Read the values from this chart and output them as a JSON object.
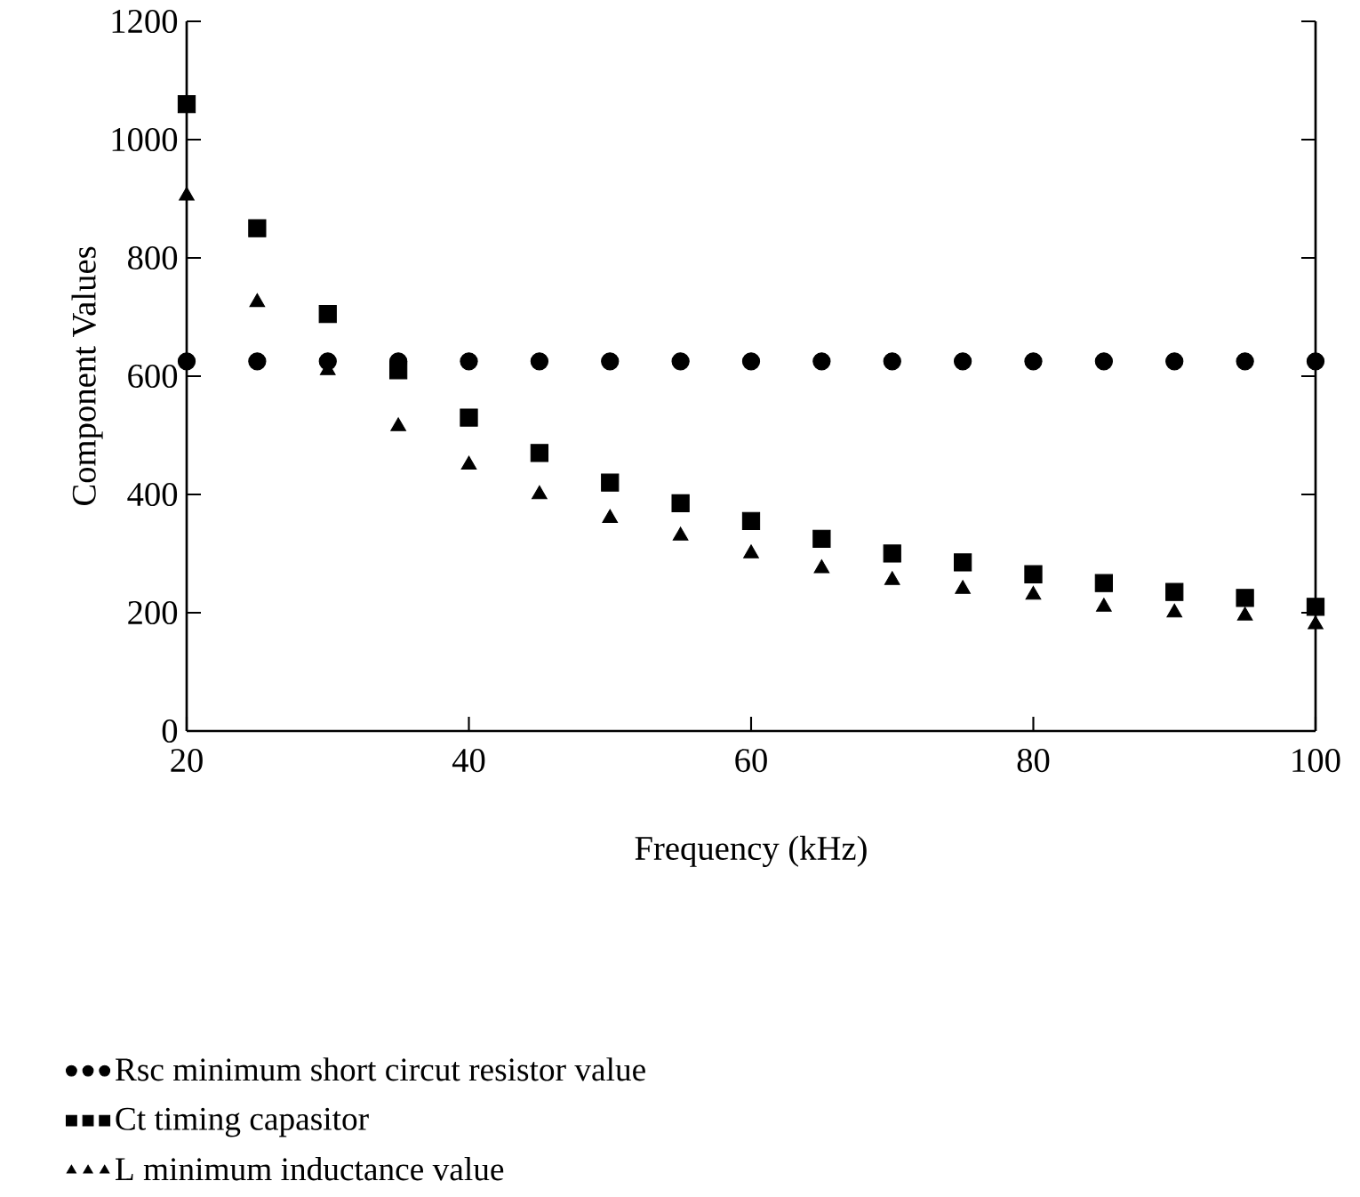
{
  "chart_data": {
    "type": "scatter",
    "xlabel": "Frequency (kHz)",
    "ylabel": "Component Values",
    "x": [
      20,
      25,
      30,
      35,
      40,
      45,
      50,
      55,
      60,
      65,
      70,
      75,
      80,
      85,
      90,
      95,
      100
    ],
    "series": [
      {
        "name": "Rsc minimum short circut resistor value",
        "color": "#000000",
        "marker": "circle",
        "values": [
          625,
          625,
          625,
          625,
          625,
          625,
          625,
          625,
          625,
          625,
          625,
          625,
          625,
          625,
          625,
          625,
          625
        ]
      },
      {
        "name": "Ct timing capasitor",
        "color": "#000000",
        "marker": "square",
        "values": [
          1060,
          850,
          705,
          610,
          530,
          470,
          420,
          385,
          355,
          325,
          300,
          285,
          265,
          250,
          235,
          225,
          210
        ]
      },
      {
        "name": "L minimum inductance value",
        "color": "#000000",
        "marker": "triangle",
        "values": [
          905,
          725,
          610,
          515,
          450,
          400,
          360,
          330,
          300,
          275,
          255,
          240,
          230,
          210,
          200,
          195,
          180
        ]
      }
    ],
    "xlim": [
      20,
      100
    ],
    "ylim": [
      0,
      1200
    ],
    "xticks": [
      20,
      40,
      60,
      80,
      100
    ],
    "yticks": [
      0,
      200,
      400,
      600,
      800,
      1000,
      1200
    ],
    "grid": false,
    "legend": "bottom"
  }
}
